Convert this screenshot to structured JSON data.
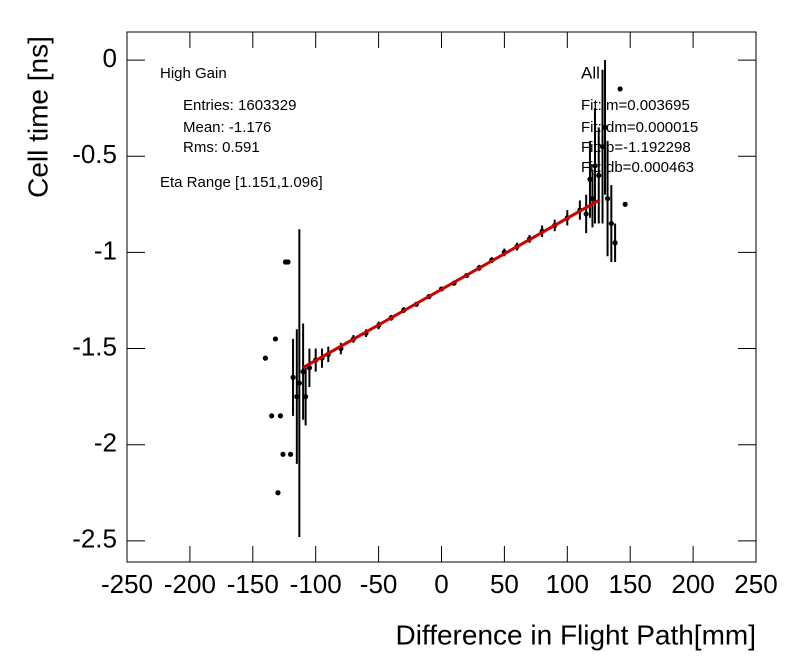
{
  "chart_data": {
    "type": "scatter",
    "xlabel": "Difference in Flight Path[mm]",
    "ylabel": "Cell time [ns]",
    "xlim": [
      -250,
      250
    ],
    "ylim": [
      -2.61,
      0.146
    ],
    "xticks": [
      -250,
      -200,
      -150,
      -100,
      -50,
      0,
      50,
      100,
      150,
      200,
      250
    ],
    "yticks": [
      0,
      -0.5,
      -1,
      -1.5,
      -2,
      -2.5
    ],
    "color": "#000000",
    "x": [
      -140,
      -135,
      -132,
      -130,
      -128,
      -126,
      -124,
      -122,
      -120,
      -118,
      -115,
      -113,
      -110,
      -108,
      -105,
      -100,
      -95,
      -90,
      -80,
      -70,
      -60,
      -50,
      -40,
      -30,
      -20,
      -10,
      0,
      10,
      20,
      30,
      40,
      50,
      60,
      70,
      80,
      90,
      100,
      110,
      115,
      118,
      120,
      122,
      125,
      128,
      130,
      132,
      135,
      138,
      142,
      146
    ],
    "y": [
      -1.55,
      -1.85,
      -1.45,
      -2.25,
      -1.85,
      -2.05,
      -1.05,
      -1.05,
      -2.05,
      -1.65,
      -1.75,
      -1.68,
      -1.62,
      -1.75,
      -1.6,
      -1.56,
      -1.55,
      -1.53,
      -1.5,
      -1.45,
      -1.42,
      -1.38,
      -1.34,
      -1.3,
      -1.27,
      -1.23,
      -1.19,
      -1.16,
      -1.12,
      -1.08,
      -1.04,
      -1.0,
      -0.97,
      -0.93,
      -0.89,
      -0.86,
      -0.82,
      -0.78,
      -0.8,
      -0.62,
      -0.72,
      -0.55,
      -0.6,
      -0.45,
      -0.35,
      -0.72,
      -0.85,
      -0.95,
      -0.15,
      -0.75
    ],
    "err": [
      0,
      0,
      0,
      0,
      0,
      0,
      0,
      0,
      0,
      0.2,
      0.35,
      0.8,
      0.25,
      0.15,
      0.1,
      0.06,
      0.05,
      0.04,
      0.03,
      0.02,
      0.02,
      0.02,
      0.015,
      0.015,
      0.01,
      0.01,
      0.01,
      0.01,
      0.01,
      0.015,
      0.015,
      0.02,
      0.02,
      0.02,
      0.03,
      0.03,
      0.04,
      0.05,
      0.1,
      0.2,
      0.15,
      0.3,
      0.25,
      0.4,
      0.35,
      0.3,
      0.2,
      0.1,
      0,
      0
    ],
    "fit": {
      "x": [
        -110,
        125
      ],
      "y": [
        -1.599,
        -0.73
      ],
      "color": "#cc0000"
    },
    "stats_left": [
      "High Gain",
      "Entries: 1603329",
      "Mean: -1.176",
      "Rms: 0.591",
      "Eta Range [1.151,1.096]"
    ],
    "stats_right": [
      "All",
      "Fit: m=0.003695",
      "Fit: dm=0.000015",
      "Fit: b=-1.192298",
      "Fit: db=0.000463"
    ]
  }
}
